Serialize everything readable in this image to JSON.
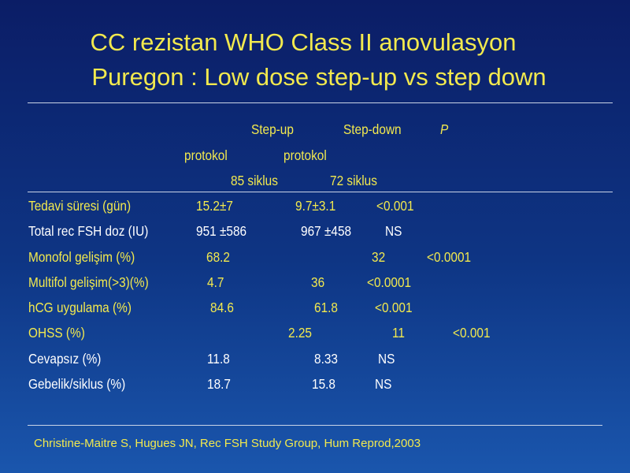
{
  "title": {
    "line1": "CC rezistan WHO Class II anovulasyon",
    "line2": "Puregon : Low dose step-up vs step down"
  },
  "table": {
    "header": {
      "step_up": "Step-up",
      "step_down": "Step-down",
      "p": "P",
      "protokol_1": "protokol",
      "protokol_2": "protokol",
      "siklus_1": "85 siklus",
      "siklus_2": "72 siklus"
    },
    "rows": [
      {
        "label": "Tedavi süresi (gün)",
        "step_up": "15.2±7",
        "step_down": "9.7±3.1",
        "p": "<0.001",
        "color": "yellow"
      },
      {
        "label": "Total rec FSH doz (IU)",
        "step_up": "951 ±586",
        "step_down": "967 ±458",
        "p": "NS",
        "color": "white"
      },
      {
        "label": "Monofol  gelişim (%)",
        "step_up": "68.2",
        "step_down": "32",
        "p": "<0.0001",
        "color": "yellow"
      },
      {
        "label": "Multifol gelişim(>3)(%)",
        "step_up": "4.7",
        "step_down": "36",
        "p": "<0.0001",
        "color": "yellow"
      },
      {
        "label": "hCG uygulama (%)",
        "step_up": "84.6",
        "step_down": "61.8",
        "p": "<0.001",
        "color": "yellow"
      },
      {
        "label": "OHSS (%)",
        "step_up": "2.25",
        "step_down": "11",
        "p": "<0.001",
        "color": "yellow"
      },
      {
        "label": "Cevapsız (%)",
        "step_up": "11.8",
        "step_down": "8.33",
        "p": "NS",
        "color": "white"
      },
      {
        "label": "Gebelik/siklus (%)",
        "step_up": "18.7",
        "step_down": "15.8",
        "p": "NS",
        "color": "white"
      }
    ]
  },
  "citation": "Christine-Maitre S, Hugues JN, Rec FSH Study Group, Hum Reprod,2003",
  "colors": {
    "background_top": "#0b1d66",
    "background_bottom": "#1a56ad",
    "yellow": "#f2e94e",
    "white": "#ffffff"
  }
}
